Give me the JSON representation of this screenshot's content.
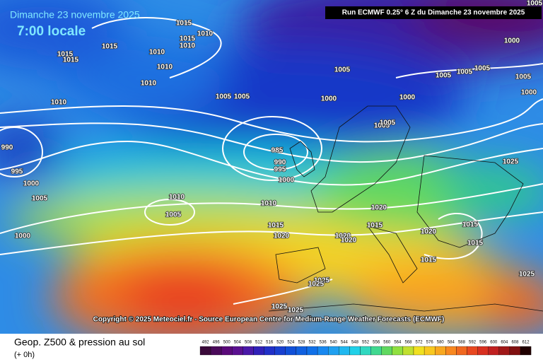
{
  "header": {
    "date": "Dimanche 23 novembre 2025",
    "time": "7:00 locale",
    "run": "Run ECMWF 0.25° 6 Z du Dimanche 23 novembre 2025"
  },
  "copyright": "Copyright © 2025 Meteociel.fr - Source European Centre for Medium-Range Weather Forecasts (ECMWF)",
  "footer": {
    "title": "Geop. Z500 & pression au sol",
    "lead": "(+ 0h)"
  },
  "colorbar": {
    "labels": [
      492,
      496,
      500,
      504,
      508,
      512,
      516,
      520,
      524,
      528,
      532,
      536,
      540,
      544,
      548,
      552,
      556,
      560,
      564,
      568,
      572,
      576,
      580,
      584,
      588,
      592,
      596,
      600,
      604,
      608,
      612
    ]
  },
  "isobar_labels": [
    1015,
    1010,
    1015,
    1010,
    1015,
    1015,
    1015,
    1010,
    1010,
    1010,
    1010,
    1005,
    1005,
    1000,
    1005,
    1000,
    1000,
    1005,
    1005,
    1005,
    1005,
    1000,
    1005,
    990,
    995,
    1000,
    1005,
    1000,
    985,
    990,
    995,
    1000,
    1005,
    1005,
    1025,
    1010,
    1005,
    1010,
    1015,
    1020,
    1020,
    1015,
    1020,
    1020,
    1020,
    1015,
    1015,
    1015,
    1025,
    1025,
    1025,
    1025,
    1025
  ]
}
